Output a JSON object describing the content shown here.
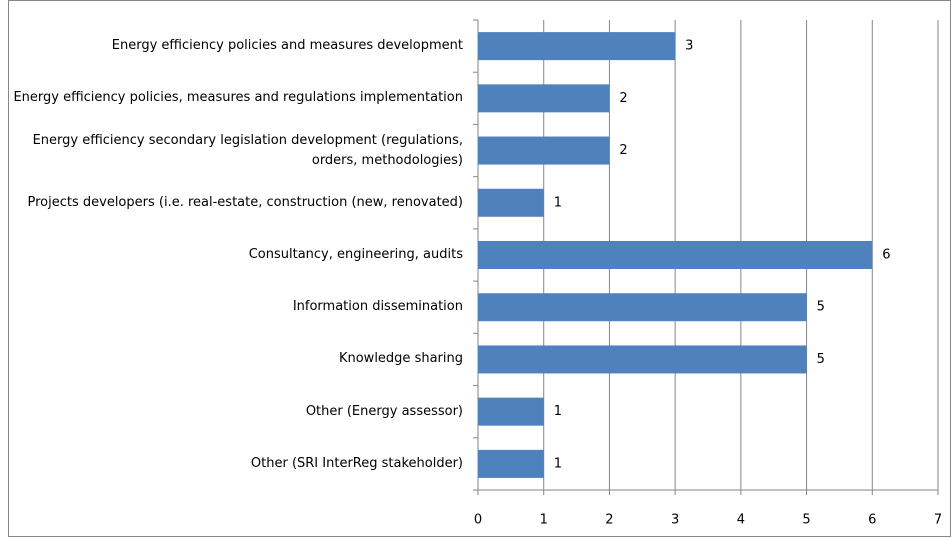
{
  "chart_data": {
    "type": "bar",
    "orientation": "horizontal",
    "categories": [
      "Energy efficiency policies and measures development",
      "Energy efficiency policies, measures and regulations implementation",
      "Energy efficiency secondary legislation development (regulations, orders, methodologies)",
      "Projects developers (i.e. real-estate, construction (new, renovated)",
      "Consultancy, engineering, audits",
      "Information dissemination",
      "Knowledge sharing",
      "Other (Energy assessor)",
      "Other (SRI InterReg stakeholder)"
    ],
    "values": [
      3,
      2,
      2,
      1,
      6,
      5,
      5,
      1,
      1
    ],
    "color": "#4f81bd",
    "xlim": [
      0,
      7
    ],
    "xticks": [
      0,
      1,
      2,
      3,
      4,
      5,
      6,
      7
    ],
    "grid": true
  }
}
